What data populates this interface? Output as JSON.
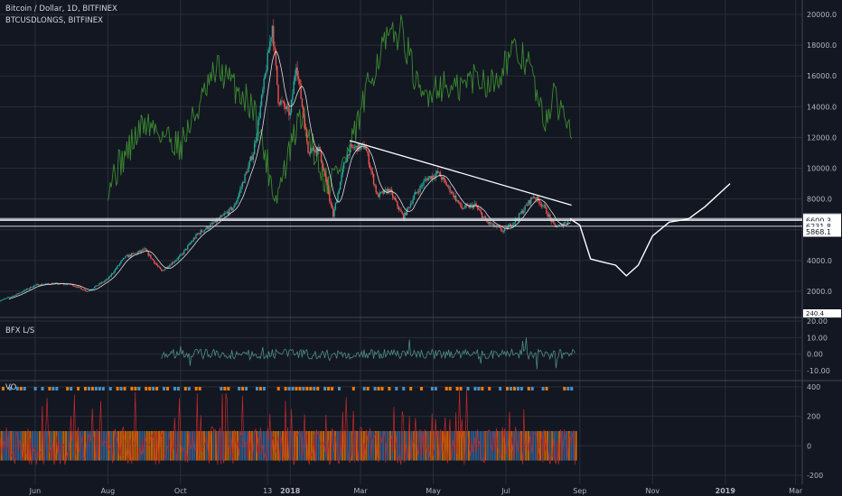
{
  "header": {
    "symbol_line": "Bitcoin / Dollar, 1D, BITFINEX",
    "overlay_line": "BTCUSDLONGS, BITFINEX"
  },
  "panes": {
    "ls_label": "BFX L/S",
    "vo_label": "VO"
  },
  "colors": {
    "background": "#131722",
    "grid": "#2a2e39",
    "up": "#26a69a",
    "down": "#ef5350",
    "longs": "#3a8a2f",
    "projection": "#ffffff",
    "ls_line": "#4c8c84",
    "vo_orange": "#f57c00",
    "vo_blue": "#2962ff",
    "vo_red": "#c62828"
  },
  "chart_data": [
    {
      "type": "line",
      "title": "Bitcoin / Dollar, 1D, BITFINEX",
      "x_ticks": [
        "Jun",
        "Aug",
        "Oct",
        "13",
        "2018",
        "Mar",
        "May",
        "Jul",
        "Sep",
        "Nov",
        "2019",
        "Mar"
      ],
      "y_ticks": [
        "20000.0",
        "18000.0",
        "16000.0",
        "14000.0",
        "12000.0",
        "10000.0",
        "8000.0",
        "6000.0",
        "4000.0",
        "2000.0"
      ],
      "price_labels": [
        "6737.2",
        "6650.6",
        "6600.3",
        "6231.8",
        "5868.1"
      ],
      "bottom_label": "240.4",
      "series": [
        {
          "name": "Bitcoin / Dollar",
          "x": [
            "2017-05-01",
            "2017-05-15",
            "2017-06-01",
            "2017-06-15",
            "2017-07-01",
            "2017-07-15",
            "2017-08-01",
            "2017-08-15",
            "2017-09-01",
            "2017-09-15",
            "2017-10-01",
            "2017-10-15",
            "2017-11-01",
            "2017-11-15",
            "2017-12-01",
            "2017-12-10",
            "2017-12-17",
            "2017-12-22",
            "2018-01-01",
            "2018-01-06",
            "2018-01-16",
            "2018-01-25",
            "2018-02-06",
            "2018-02-15",
            "2018-02-20",
            "2018-03-05",
            "2018-03-15",
            "2018-03-25",
            "2018-04-06",
            "2018-04-15",
            "2018-04-25",
            "2018-05-05",
            "2018-05-15",
            "2018-05-25",
            "2018-06-05",
            "2018-06-15",
            "2018-06-29",
            "2018-07-10",
            "2018-07-24",
            "2018-08-01",
            "2018-08-10",
            "2018-08-14",
            "2018-08-24"
          ],
          "values": [
            1350,
            1750,
            2400,
            2500,
            2450,
            2000,
            2800,
            4200,
            4700,
            3300,
            4300,
            5700,
            6600,
            7500,
            11000,
            15500,
            19300,
            14500,
            13500,
            16900,
            11200,
            11300,
            6900,
            10200,
            11300,
            11400,
            8200,
            8600,
            6800,
            8200,
            9300,
            9700,
            8600,
            7400,
            7600,
            6500,
            5900,
            6700,
            8200,
            7600,
            6300,
            6200,
            6700
          ]
        },
        {
          "name": "BTCUSDLONGS",
          "x": [
            "2017-08-01",
            "2017-09-01",
            "2017-10-01",
            "2017-11-01",
            "2017-12-01",
            "2017-12-20",
            "2018-01-10",
            "2018-02-01",
            "2018-02-20",
            "2018-03-10",
            "2018-03-20",
            "2018-04-05",
            "2018-04-20",
            "2018-05-05",
            "2018-05-20",
            "2018-06-05",
            "2018-06-20",
            "2018-07-05",
            "2018-07-20",
            "2018-08-01",
            "2018-08-10",
            "2018-08-25"
          ],
          "values": [
            9000,
            13000,
            11500,
            16500,
            14000,
            8000,
            13500,
            9000,
            11000,
            16000,
            18000,
            19000,
            14500,
            15500,
            15000,
            16000,
            15500,
            17500,
            17000,
            13000,
            14500,
            13000
          ]
        },
        {
          "name": "projection",
          "x": [
            "2018-08-24",
            "2018-09-01",
            "2018-09-10",
            "2018-09-20",
            "2018-10-01",
            "2018-10-10",
            "2018-10-20",
            "2018-11-01",
            "2018-11-15",
            "2018-12-01",
            "2018-12-15",
            "2019-01-05"
          ],
          "values": [
            6700,
            6300,
            4100,
            3900,
            3700,
            3000,
            3700,
            5600,
            6500,
            6700,
            7500,
            9000
          ]
        }
      ],
      "annotations": {
        "trendline": {
          "from": [
            "2018-02-20",
            11800
          ],
          "to": [
            "2018-08-25",
            7600
          ]
        },
        "horizontal_levels": [
          6737.2,
          6650.6,
          6600.3,
          6231.8
        ]
      }
    },
    {
      "type": "line",
      "title": "BFX L/S",
      "y_ticks": [
        "20.00",
        "10.00",
        "0.00",
        "-10.00"
      ]
    },
    {
      "type": "bar",
      "title": "VO",
      "y_ticks": [
        "400",
        "200",
        "0",
        "-200"
      ]
    }
  ]
}
